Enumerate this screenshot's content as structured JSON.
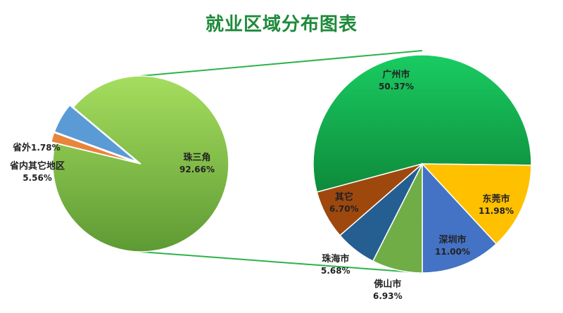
{
  "title": "就业区域分布图表",
  "chart_data": [
    {
      "type": "pie",
      "slices": [
        {
          "name": "珠三角",
          "value": 92.66,
          "label": "92.66%",
          "color": "#7cc24f"
        },
        {
          "name": "省外",
          "value": 1.78,
          "label": "1.78%",
          "color": "#e8843c"
        },
        {
          "name": "省内其它地区",
          "value": 5.56,
          "label": "5.56%",
          "color": "#5b9bd5"
        }
      ]
    },
    {
      "type": "pie",
      "slices": [
        {
          "name": "广州市",
          "value": 50.37,
          "label": "50.37%",
          "color": "#1dbf5a"
        },
        {
          "name": "东莞市",
          "value": 11.98,
          "label": "11.98%",
          "color": "#ffc000"
        },
        {
          "name": "深圳市",
          "value": 11.0,
          "label": "11.00%",
          "color": "#4472c4"
        },
        {
          "name": "佛山市",
          "value": 6.93,
          "label": "6.93%",
          "color": "#70ad47"
        },
        {
          "name": "珠海市",
          "value": 5.68,
          "label": "5.68%",
          "color": "#255e91"
        },
        {
          "name": "其它",
          "value": 6.7,
          "label": "6.70%",
          "color": "#9e480e"
        }
      ]
    }
  ]
}
